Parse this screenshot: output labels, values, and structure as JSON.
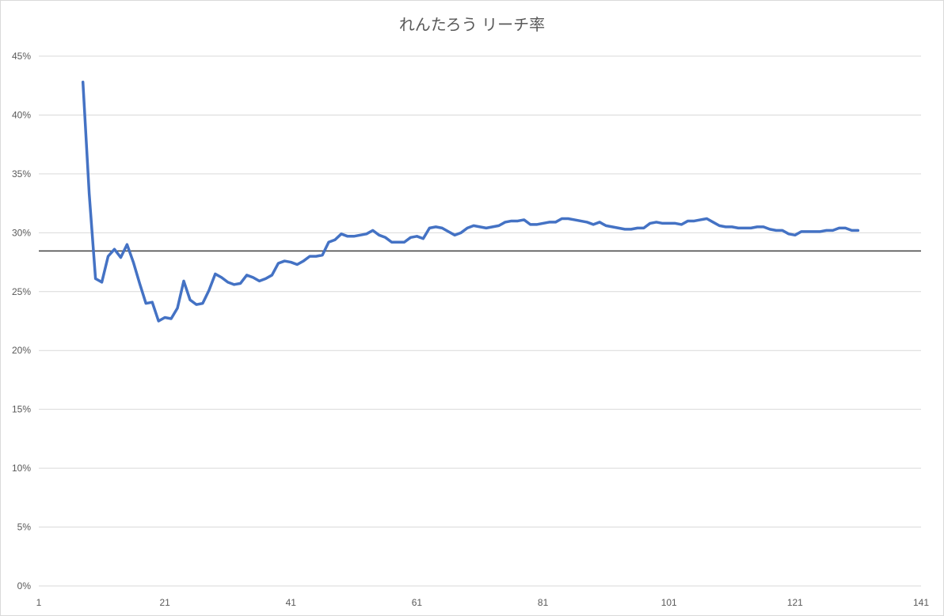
{
  "chart_data": {
    "type": "line",
    "title": "れんたろう リーチ率",
    "xlabel": "",
    "ylabel": "",
    "xlim": [
      1,
      141
    ],
    "ylim": [
      0,
      0.45
    ],
    "x_ticks": [
      "1",
      "21",
      "41",
      "61",
      "81",
      "101",
      "121",
      "141"
    ],
    "y_ticks": [
      "0%",
      "5%",
      "10%",
      "15%",
      "20%",
      "25%",
      "30%",
      "35%",
      "40%",
      "45%"
    ],
    "grid": true,
    "legend": "none",
    "series": [
      {
        "color": "#4472C4",
        "x_start": 8,
        "values": [
          0.428,
          0.333,
          0.261,
          0.258,
          0.28,
          0.286,
          0.279,
          0.29,
          0.275,
          0.257,
          0.24,
          0.241,
          0.225,
          0.228,
          0.227,
          0.236,
          0.259,
          0.243,
          0.239,
          0.24,
          0.251,
          0.265,
          0.262,
          0.258,
          0.256,
          0.257,
          0.264,
          0.262,
          0.259,
          0.261,
          0.264,
          0.274,
          0.276,
          0.275,
          0.273,
          0.276,
          0.28,
          0.28,
          0.281,
          0.292,
          0.294,
          0.299,
          0.297,
          0.297,
          0.298,
          0.299,
          0.302,
          0.298,
          0.296,
          0.292,
          0.292,
          0.292,
          0.296,
          0.297,
          0.295,
          0.304,
          0.305,
          0.304,
          0.301,
          0.298,
          0.3,
          0.304,
          0.306,
          0.305,
          0.304,
          0.305,
          0.306,
          0.309,
          0.31,
          0.31,
          0.311,
          0.307,
          0.307,
          0.308,
          0.309,
          0.309,
          0.312,
          0.312,
          0.311,
          0.31,
          0.309,
          0.307,
          0.309,
          0.306,
          0.305,
          0.304,
          0.303,
          0.303,
          0.304,
          0.304,
          0.308,
          0.309,
          0.308,
          0.308,
          0.308,
          0.307,
          0.31,
          0.31,
          0.311,
          0.312,
          0.309,
          0.306,
          0.305,
          0.305,
          0.304,
          0.304,
          0.304,
          0.305,
          0.305,
          0.303,
          0.302,
          0.302,
          0.299,
          0.298,
          0.301,
          0.301,
          0.301,
          0.301,
          0.302,
          0.302,
          0.304,
          0.304,
          0.302,
          0.302
        ]
      }
    ],
    "reference_line": {
      "value": 0.2845,
      "color": "#404040"
    }
  }
}
